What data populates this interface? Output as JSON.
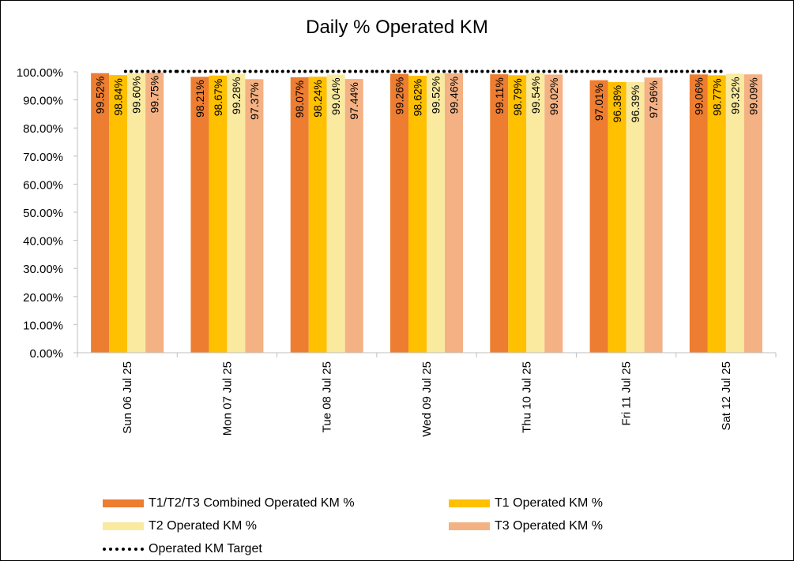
{
  "chart_data": {
    "type": "bar",
    "title": "Daily % Operated KM",
    "categories": [
      "Sun 06 Jul 25",
      "Mon 07 Jul 25",
      "Tue 08 Jul 25",
      "Wed 09 Jul 25",
      "Thu 10 Jul 25",
      "Fri 11 Jul 25",
      "Sat 12 Jul 25"
    ],
    "series": [
      {
        "name": "T1/T2/T3 Combined Operated KM %",
        "color": "#ed7d31",
        "values": [
          99.52,
          98.21,
          98.07,
          99.26,
          99.11,
          97.01,
          99.06
        ],
        "labels": [
          "99.52%",
          "98.21%",
          "98.07%",
          "99.26%",
          "99.11%",
          "97.01%",
          "99.06%"
        ]
      },
      {
        "name": "T1 Operated KM %",
        "color": "#ffc000",
        "values": [
          98.84,
          98.67,
          98.24,
          98.62,
          98.79,
          96.38,
          98.77
        ],
        "labels": [
          "98.84%",
          "98.67%",
          "98.24%",
          "98.62%",
          "98.79%",
          "96.38%",
          "98.77%"
        ]
      },
      {
        "name": "T2 Operated KM %",
        "color": "#faeaa0",
        "values": [
          99.6,
          99.28,
          99.04,
          99.52,
          99.54,
          96.39,
          99.32
        ],
        "labels": [
          "99.60%",
          "99.28%",
          "99.04%",
          "99.52%",
          "99.54%",
          "96.39%",
          "99.32%"
        ]
      },
      {
        "name": "T3 Operated KM %",
        "color": "#f4b183",
        "values": [
          99.75,
          97.37,
          97.44,
          99.46,
          99.02,
          97.96,
          99.09
        ],
        "labels": [
          "99.75%",
          "97.37%",
          "97.44%",
          "99.46%",
          "99.02%",
          "97.96%",
          "99.09%"
        ]
      }
    ],
    "target": {
      "name": "Operated KM Target",
      "value": 99.0,
      "style": "dotted",
      "color": "#000000"
    },
    "ylim": [
      0,
      100
    ],
    "yticks": [
      0,
      10,
      20,
      30,
      40,
      50,
      60,
      70,
      80,
      90,
      100
    ],
    "ytick_labels": [
      "0.00%",
      "10.00%",
      "20.00%",
      "30.00%",
      "40.00%",
      "50.00%",
      "60.00%",
      "70.00%",
      "80.00%",
      "90.00%",
      "100.00%"
    ],
    "xlabel": "",
    "ylabel": "",
    "grid": false,
    "legend_position": "bottom"
  }
}
